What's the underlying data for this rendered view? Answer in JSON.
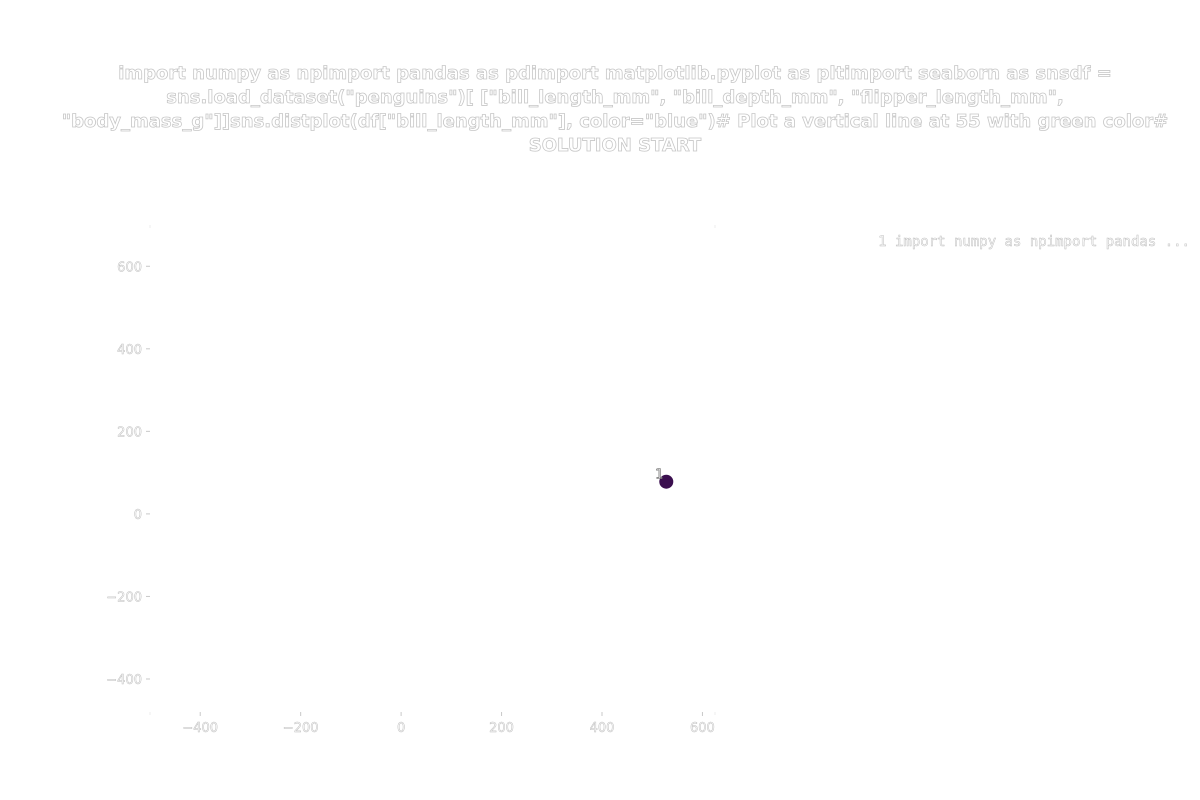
{
  "chart_data": {
    "type": "scatter",
    "title": "import numpy as npimport pandas as pdimport matplotlib.pyplot as pltimport seaborn as snsdf = sns.load_dataset(\"penguins\")[    [\"bill_length_mm\", \"bill_depth_mm\", \"flipper_length_mm\", \"body_mass_g\"]]sns.distplot(df[\"bill_length_mm\"], color=\"blue\")# Plot a vertical line at 55 with green color# SOLUTION START",
    "xlabel": "",
    "ylabel": "",
    "xlim": [
      -500,
      625
    ],
    "ylim": [
      -480,
      700
    ],
    "x_ticks": [
      -400,
      -200,
      0,
      200,
      400,
      600
    ],
    "y_ticks": [
      600,
      400,
      200,
      0,
      -200,
      -400
    ],
    "x_tick_labels": [
      "−400",
      "−200",
      "0",
      "200",
      "400",
      "600"
    ],
    "y_tick_labels": [
      "600",
      "400",
      "200",
      "0",
      "−200",
      "−400"
    ],
    "grid": false,
    "legend_position": "top-right",
    "legend": [
      "1  import numpy as npimport pandas ..."
    ],
    "points": [
      {
        "label": "1",
        "x": 528,
        "y": 78,
        "color": "#3b0f4f"
      }
    ]
  }
}
